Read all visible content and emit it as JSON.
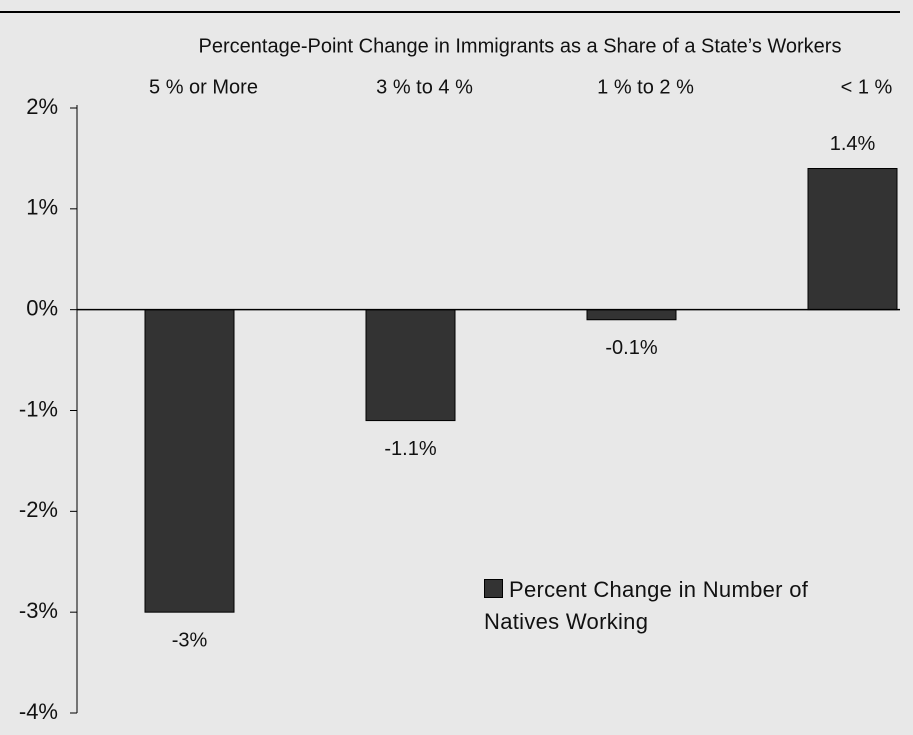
{
  "chart_data": {
    "type": "bar",
    "subtitle": "Percentage-Point Change in Immigrants as a Share of a State’s Workers",
    "categories": [
      "5 % or More",
      "3 % to 4 %",
      "1 % to 2 %",
      "< 1 %"
    ],
    "series": [
      {
        "name": "Percent Change in Number of Natives Working",
        "color": "#333333",
        "values": [
          -3,
          -1.1,
          -0.1,
          1.4
        ],
        "value_labels": [
          "-3%",
          "-1.1%",
          "-0.1%",
          "1.4%"
        ]
      }
    ],
    "ylim": [
      -4,
      2
    ],
    "yticks": [
      {
        "value": 2,
        "label": "2%"
      },
      {
        "value": 1,
        "label": "1%"
      },
      {
        "value": 0,
        "label": "0%"
      },
      {
        "value": -1,
        "label": "-1%"
      },
      {
        "value": -2,
        "label": "-2%"
      },
      {
        "value": -3,
        "label": "-3%"
      },
      {
        "value": -4,
        "label": "-4%"
      }
    ],
    "grid": false,
    "legend": "bottom-right"
  }
}
